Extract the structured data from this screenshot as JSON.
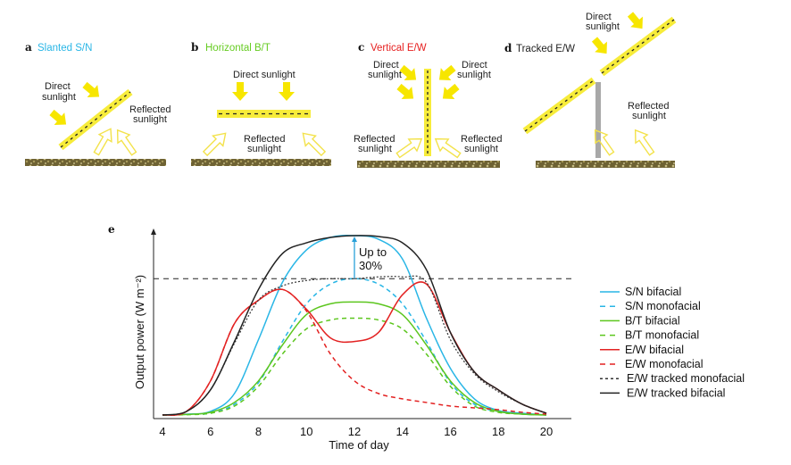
{
  "panels": [
    {
      "letter": "a",
      "title": "Slanted S/N",
      "title_color": "#29b6e6",
      "direct": [
        "Direct",
        "sunlight"
      ],
      "reflected": [
        "Reflected",
        "sunlight"
      ]
    },
    {
      "letter": "b",
      "title": "Horizontal B/T",
      "title_color": "#66cc22",
      "direct": [
        "Direct sunlight"
      ],
      "reflected": [
        "Reflected",
        "sunlight"
      ]
    },
    {
      "letter": "c",
      "title": "Vertical E/W",
      "title_color": "#e62020",
      "direct": [
        "Direct",
        "sunlight"
      ],
      "direct_right": [
        "Direct",
        "sunlight"
      ],
      "reflected": [
        "Reflected",
        "sunlight"
      ],
      "reflected_right": [
        "Reflected",
        "sunlight"
      ]
    },
    {
      "letter": "d",
      "title": "Tracked E/W",
      "title_color": "#222222",
      "direct": [
        "Direct",
        "sunlight"
      ],
      "reflected": [
        "Reflected",
        "sunlight"
      ]
    }
  ],
  "chart_data": {
    "panel_letter": "e",
    "type": "line",
    "xlabel": "Time of day",
    "ylabel": "Output power (W m⁻²)",
    "xlim": [
      4,
      20
    ],
    "ylim": [
      0,
      100
    ],
    "xticks": [
      4,
      6,
      8,
      10,
      12,
      14,
      16,
      18,
      20
    ],
    "y_units": "relative (no numeric ticks shown)",
    "reference_line": {
      "y": 76,
      "style": "dashed",
      "color": "#222222"
    },
    "annotation": {
      "text": [
        "Up to",
        "30%"
      ],
      "x": 12,
      "from": 76,
      "to": 100,
      "color": "#29a0d8"
    },
    "x": [
      4,
      5,
      6,
      7,
      8,
      9,
      10,
      11,
      12,
      13,
      14,
      15,
      16,
      17,
      18,
      19,
      20
    ],
    "series": [
      {
        "name": "S/N bifacial",
        "color": "#29b6e6",
        "dash": false,
        "values": [
          0,
          0.5,
          2,
          12,
          42,
          74,
          92,
          99,
          100,
          98,
          87,
          54,
          26,
          9,
          2.5,
          1,
          0
        ]
      },
      {
        "name": "S/N monofacial",
        "color": "#29b6e6",
        "dash": true,
        "values": [
          0,
          0.3,
          1,
          6,
          18,
          41,
          62,
          73,
          76,
          73,
          62,
          41,
          18,
          6,
          2,
          0.5,
          0
        ]
      },
      {
        "name": "B/T bifacial",
        "color": "#5cc61e",
        "dash": false,
        "values": [
          0,
          0.3,
          1.5,
          7,
          19,
          39,
          56,
          62,
          63,
          62,
          56,
          39,
          19,
          7,
          2,
          0.5,
          0
        ]
      },
      {
        "name": "B/T monofacial",
        "color": "#5cc61e",
        "dash": true,
        "values": [
          0,
          0.2,
          1,
          5,
          16,
          34,
          48,
          53,
          54,
          53,
          48,
          34,
          16,
          5,
          1.5,
          0.5,
          0
        ]
      },
      {
        "name": "E/W bifacial",
        "color": "#e32222",
        "dash": false,
        "values": [
          0,
          2,
          19,
          51,
          64,
          70,
          59,
          43,
          41,
          46,
          67,
          73,
          46,
          24,
          14,
          6,
          1
        ]
      },
      {
        "name": "E/W monofacial",
        "color": "#e32222",
        "dash": true,
        "values": [
          0,
          2,
          19,
          51,
          64,
          70,
          58,
          34,
          19,
          12,
          9,
          7,
          5,
          4,
          3,
          1.5,
          0.5
        ]
      },
      {
        "name": "E/W tracked monofacial",
        "color": "#333333",
        "dash": "dot",
        "values": [
          0,
          2,
          14,
          40,
          64,
          72,
          75,
          76,
          76,
          77,
          77,
          74,
          42,
          23,
          13,
          6,
          1
        ]
      },
      {
        "name": "E/W tracked bifacial",
        "color": "#222222",
        "dash": false,
        "values": [
          0,
          2,
          14,
          41,
          70,
          90,
          96,
          99,
          100,
          99.5,
          96,
          81,
          46,
          24,
          14,
          6,
          1
        ]
      }
    ]
  }
}
